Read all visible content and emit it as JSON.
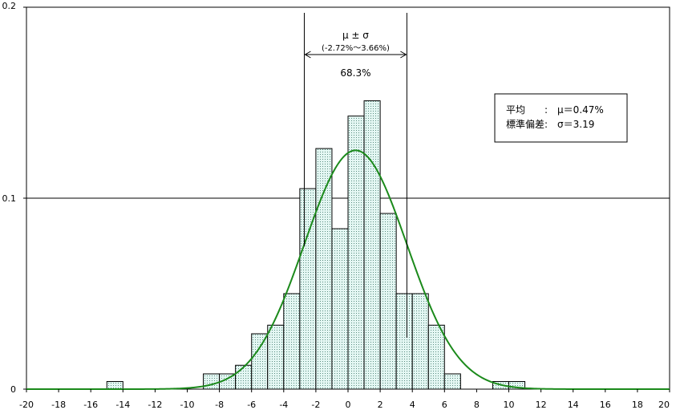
{
  "chart_data": {
    "type": "bar",
    "title": "",
    "xlabel": "",
    "ylabel": "",
    "xlim": [
      -20,
      20
    ],
    "ylim": [
      0,
      0.2
    ],
    "x_ticks": [
      "-20",
      "-18",
      "-16",
      "-14",
      "-12",
      "-10",
      "-8",
      "-6",
      "-4",
      "-2",
      "0",
      "2",
      "4",
      "6",
      "8",
      "10",
      "12",
      "14",
      "16",
      "18",
      "20"
    ],
    "y_ticks": [
      "0",
      "0.1",
      "0.2"
    ],
    "bin_width": 1,
    "bars": [
      {
        "x0": -15,
        "x1": -14,
        "value": 0.004
      },
      {
        "x0": -9,
        "x1": -8,
        "value": 0.008
      },
      {
        "x0": -8,
        "x1": -7,
        "value": 0.008
      },
      {
        "x0": -7,
        "x1": -6,
        "value": 0.0125
      },
      {
        "x0": -6,
        "x1": -5,
        "value": 0.029
      },
      {
        "x0": -5,
        "x1": -4,
        "value": 0.0335
      },
      {
        "x0": -4,
        "x1": -3,
        "value": 0.05
      },
      {
        "x0": -3,
        "x1": -2,
        "value": 0.105
      },
      {
        "x0": -2,
        "x1": -1,
        "value": 0.126
      },
      {
        "x0": -1,
        "x1": 0,
        "value": 0.084
      },
      {
        "x0": 0,
        "x1": 1,
        "value": 0.143
      },
      {
        "x0": 1,
        "x1": 2,
        "value": 0.151
      },
      {
        "x0": 2,
        "x1": 3,
        "value": 0.092
      },
      {
        "x0": 3,
        "x1": 4,
        "value": 0.05
      },
      {
        "x0": 4,
        "x1": 5,
        "value": 0.05
      },
      {
        "x0": 5,
        "x1": 6,
        "value": 0.0335
      },
      {
        "x0": 6,
        "x1": 7,
        "value": 0.008
      },
      {
        "x0": 9,
        "x1": 10,
        "value": 0.004
      },
      {
        "x0": 10,
        "x1": 11,
        "value": 0.004
      }
    ],
    "normal_curve": {
      "mean": 0.47,
      "sd": 3.19
    },
    "sigma_range": {
      "lower": -2.72,
      "upper": 3.66,
      "symbol": "μ ± σ",
      "range_text": "(-2.72%〜3.66%)",
      "percent_text": "68.3%"
    },
    "stats_box": {
      "line1": "平均　　:　μ＝0.47%",
      "line2": "標準偏差:　σ＝3.19"
    },
    "grid": true,
    "colors": {
      "bar_fill": "#e4f7f3",
      "bar_dots": "#5a8c80",
      "bar_stroke": "#000000",
      "curve": "#1b8a1b",
      "axis": "#000000"
    }
  }
}
